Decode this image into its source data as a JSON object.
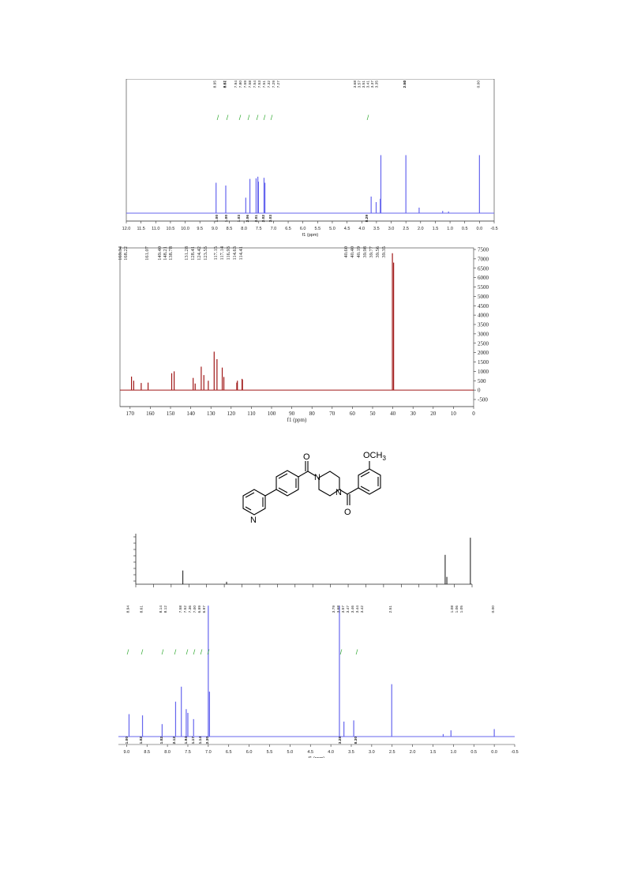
{
  "colors": {
    "h_spectrum": "#6666ee",
    "c_spectrum": "#a01818",
    "integral": "#33aa33",
    "axis": "#333333"
  },
  "chart_data": [
    {
      "type": "line",
      "xlabel": "f1 (ppm)",
      "xlim": [
        12.0,
        -0.5
      ],
      "x_ticks": [
        "12.0",
        "11.5",
        "11.0",
        "10.5",
        "10.0",
        "9.5",
        "9.0",
        "8.5",
        "8.0",
        "7.5",
        "7.0",
        "6.5",
        "6.0",
        "5.5",
        "5.0",
        "4.5",
        "4.0",
        "3.5",
        "3.0",
        "2.5",
        "2.0",
        "1.5",
        "1.0",
        "0.5",
        "0.0",
        "-0.5"
      ],
      "peak_labels": [
        "8.95",
        "8.62",
        "8.61",
        "7.94",
        "7.80",
        "7.59",
        "7.58",
        "7.54",
        "7.53",
        "7.51",
        "7.32",
        "7.29",
        "7.27",
        "3.68",
        "3.57",
        "3.51",
        "3.41",
        "3.37",
        "3.35",
        "2.51",
        "2.50",
        "2.50",
        "0.00"
      ],
      "integrals": [
        "1.00",
        "1.00",
        "1.03",
        "2.06",
        "2.01",
        "2.02",
        "3.03",
        "8.29"
      ],
      "series": [
        {
          "peaks": [
            {
              "x": 8.95,
              "y": 0.55
            },
            {
              "x": 8.62,
              "y": 0.5
            },
            {
              "x": 7.94,
              "y": 0.28
            },
            {
              "x": 7.8,
              "y": 0.62
            },
            {
              "x": 7.59,
              "y": 0.63
            },
            {
              "x": 7.53,
              "y": 0.66
            },
            {
              "x": 7.51,
              "y": 0.57
            },
            {
              "x": 7.32,
              "y": 0.64
            },
            {
              "x": 7.29,
              "y": 0.55
            },
            {
              "x": 3.68,
              "y": 0.3
            },
            {
              "x": 3.51,
              "y": 0.2
            },
            {
              "x": 3.37,
              "y": 0.26
            },
            {
              "x": 3.35,
              "y": 1.05
            },
            {
              "x": 2.5,
              "y": 1.05
            },
            {
              "x": 2.05,
              "y": 0.1
            },
            {
              "x": 1.25,
              "y": 0.04
            },
            {
              "x": 1.05,
              "y": 0.03
            },
            {
              "x": 0.0,
              "y": 1.05
            }
          ]
        }
      ]
    },
    {
      "type": "line",
      "xlabel": "f1 (ppm)",
      "xlim": [
        175,
        0
      ],
      "ylim": [
        -500,
        7500
      ],
      "x_ticks": [
        "170",
        "160",
        "150",
        "140",
        "130",
        "120",
        "110",
        "100",
        "90",
        "80",
        "70",
        "60",
        "50",
        "40",
        "30",
        "20",
        "10",
        "0"
      ],
      "y_ticks": [
        "7500",
        "7000",
        "6500",
        "6000",
        "5500",
        "5000",
        "4500",
        "4000",
        "3500",
        "3000",
        "2500",
        "2000",
        "1500",
        "1000",
        "500",
        "0",
        "-500"
      ],
      "peak_labels": [
        "169.34",
        "168.22",
        "161.07",
        "149.40",
        "148.21",
        "138.78",
        "131.28",
        "128.41",
        "124.42",
        "123.55",
        "117.15",
        "117.14",
        "116.93",
        "114.63",
        "114.41",
        "40.60",
        "40.40",
        "40.19",
        "39.98",
        "39.77",
        "39.56",
        "39.35"
      ],
      "series": [
        {
          "peaks": [
            {
              "x": 169.3,
              "y": 720
            },
            {
              "x": 168.2,
              "y": 500
            },
            {
              "x": 164.5,
              "y": 380
            },
            {
              "x": 161.1,
              "y": 400
            },
            {
              "x": 149.4,
              "y": 900
            },
            {
              "x": 148.2,
              "y": 1000
            },
            {
              "x": 138.8,
              "y": 650
            },
            {
              "x": 137.8,
              "y": 350
            },
            {
              "x": 134.8,
              "y": 1250
            },
            {
              "x": 133.5,
              "y": 800
            },
            {
              "x": 131.3,
              "y": 500
            },
            {
              "x": 128.4,
              "y": 2050
            },
            {
              "x": 127.0,
              "y": 1650
            },
            {
              "x": 124.4,
              "y": 1200
            },
            {
              "x": 123.6,
              "y": 700
            },
            {
              "x": 117.2,
              "y": 400
            },
            {
              "x": 116.9,
              "y": 500
            },
            {
              "x": 114.6,
              "y": 600
            },
            {
              "x": 114.4,
              "y": 550
            },
            {
              "x": 40.2,
              "y": 7300
            },
            {
              "x": 39.6,
              "y": 6800
            }
          ]
        }
      ]
    },
    {
      "type": "line",
      "x_ticks": [],
      "series": [
        {
          "peaks": [
            {
              "x": 0.14,
              "y": 0.28
            },
            {
              "x": 0.27,
              "y": 0.05
            },
            {
              "x": 0.92,
              "y": 0.6
            },
            {
              "x": 0.925,
              "y": 0.15
            },
            {
              "x": 0.995,
              "y": 0.95
            }
          ]
        }
      ]
    },
    {
      "type": "line",
      "xlabel": "f1 (ppm)",
      "xlim": [
        9.2,
        -0.5
      ],
      "x_ticks": [
        "9.0",
        "8.5",
        "8.0",
        "7.5",
        "7.0",
        "6.5",
        "6.0",
        "5.5",
        "5.0",
        "4.5",
        "4.0",
        "3.5",
        "3.0",
        "2.5",
        "2.0",
        "1.5",
        "1.0",
        "0.5",
        "0.0",
        "-0.5"
      ],
      "peak_labels": [
        "8.94",
        "8.61",
        "8.14",
        "8.12",
        "7.58",
        "7.52",
        "7.36",
        "7.00",
        "6.99",
        "6.97",
        "3.79",
        "3.68",
        "3.57",
        "3.47",
        "3.46",
        "3.44",
        "3.42",
        "2.51",
        "1.08",
        "1.06",
        "1.05",
        "0.00"
      ],
      "integrals": [
        "1.00",
        "1.02",
        "1.02",
        "2.12",
        "1.94",
        "1.17",
        "1.14",
        "2.30",
        "3.28",
        "8.30"
      ],
      "series": [
        {
          "peaks": [
            {
              "x": 8.94,
              "y": 0.18
            },
            {
              "x": 8.61,
              "y": 0.17
            },
            {
              "x": 8.13,
              "y": 0.1
            },
            {
              "x": 7.8,
              "y": 0.28
            },
            {
              "x": 7.66,
              "y": 0.4
            },
            {
              "x": 7.54,
              "y": 0.22
            },
            {
              "x": 7.5,
              "y": 0.19
            },
            {
              "x": 7.36,
              "y": 0.14
            },
            {
              "x": 7.0,
              "y": 1.05
            },
            {
              "x": 6.97,
              "y": 0.36
            },
            {
              "x": 3.79,
              "y": 1.05
            },
            {
              "x": 3.68,
              "y": 0.12
            },
            {
              "x": 3.44,
              "y": 0.13
            },
            {
              "x": 2.51,
              "y": 0.42
            },
            {
              "x": 1.25,
              "y": 0.02
            },
            {
              "x": 1.06,
              "y": 0.05
            },
            {
              "x": 0.0,
              "y": 0.06
            }
          ]
        }
      ]
    }
  ],
  "structure": {
    "atom_labels": {
      "o_top": "O",
      "o_bottom": "O",
      "n_top": "N",
      "n_bottom": "N",
      "n_pyridine": "N",
      "methoxy": "OCH"
    },
    "subscript": "3"
  }
}
